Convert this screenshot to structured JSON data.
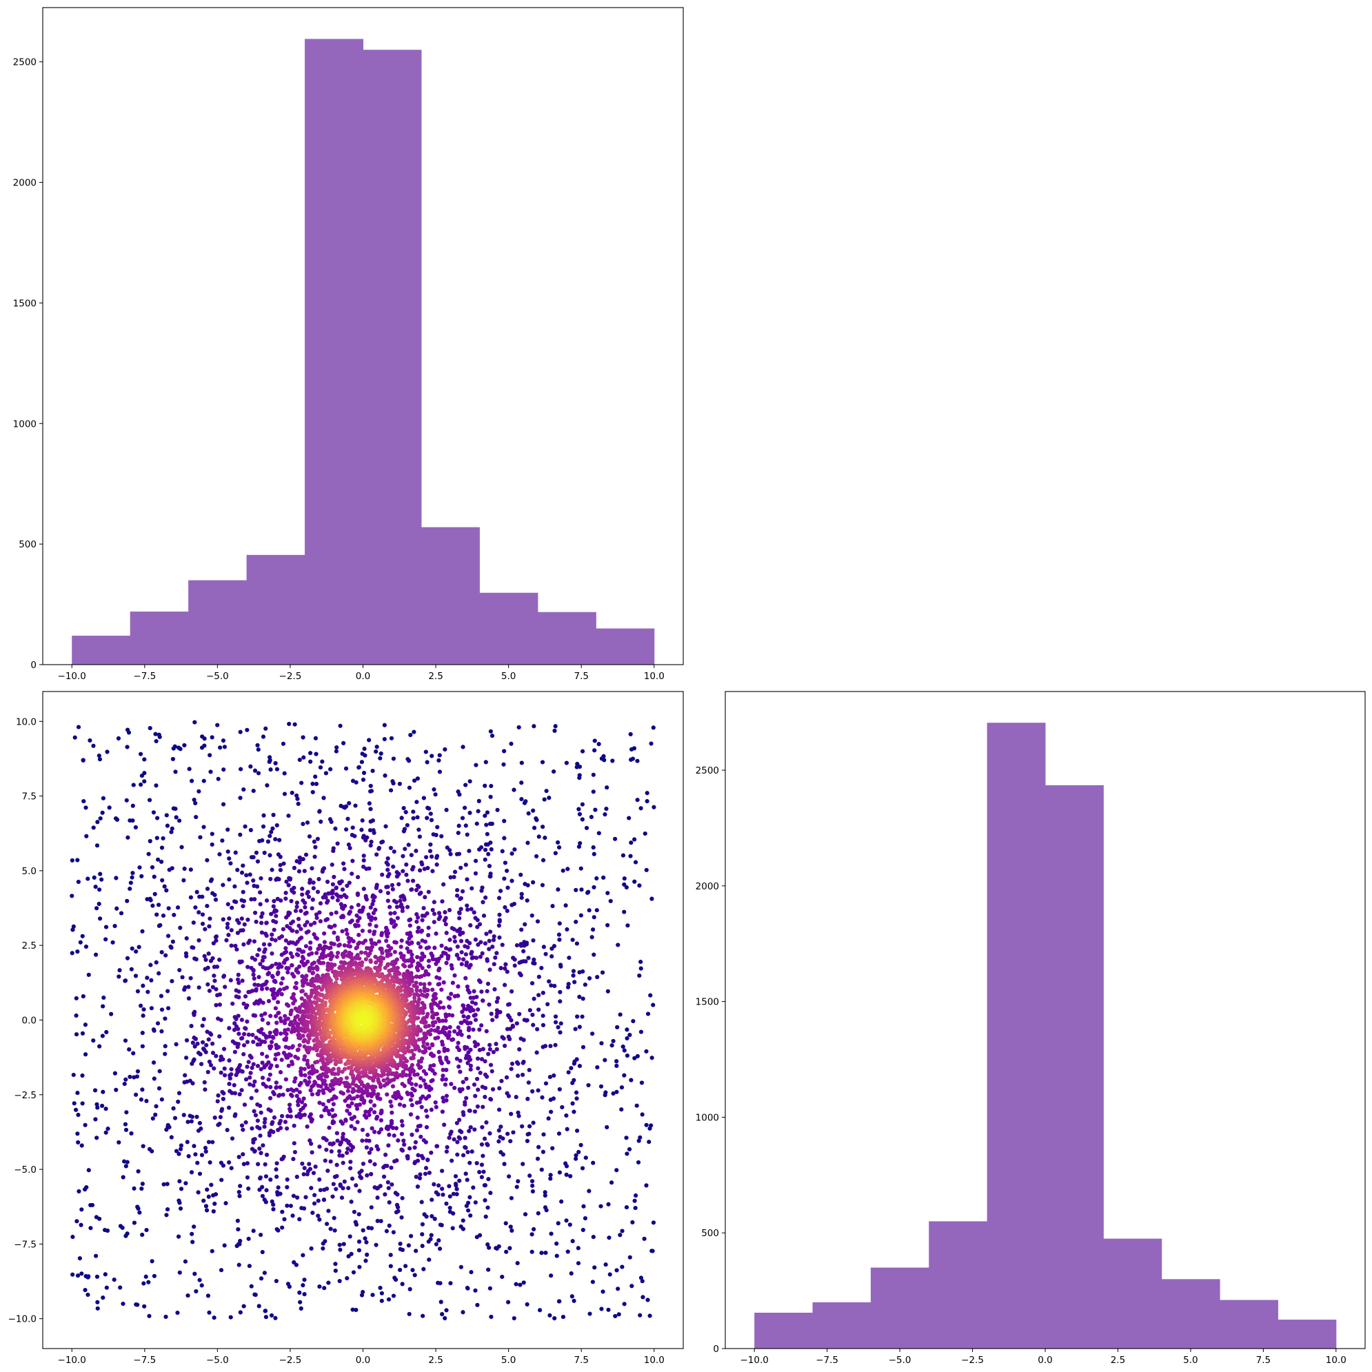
{
  "chart_data": [
    {
      "id": "hist_x",
      "type": "bar",
      "title": "",
      "xlabel": "",
      "ylabel": "",
      "color": "#9467bd",
      "bin_edges": [
        -10,
        -8,
        -6,
        -4,
        -2,
        0,
        2,
        4,
        6,
        8,
        10
      ],
      "values": [
        120,
        220,
        350,
        455,
        2595,
        2550,
        570,
        298,
        218,
        150
      ],
      "xlim": [
        -11,
        11
      ],
      "ylim": [
        0,
        2725
      ],
      "xticks": [
        -10,
        -7.5,
        -5,
        -2.5,
        0,
        2.5,
        5,
        7.5,
        10
      ],
      "xtick_labels": [
        "−10.0",
        "−7.5",
        "−5.0",
        "−2.5",
        "0.0",
        "2.5",
        "5.0",
        "7.5",
        "10.0"
      ],
      "yticks": [
        0,
        500,
        1000,
        1500,
        2000,
        2500
      ],
      "ytick_labels": [
        "0",
        "500",
        "1000",
        "1500",
        "2000",
        "2500"
      ],
      "grid": false
    },
    {
      "id": "scatter_xy",
      "type": "scatter",
      "title": "",
      "xlabel": "",
      "ylabel": "",
      "colormap": "plasma",
      "colormap_stops": [
        "#0d0887",
        "#6a00a8",
        "#b12a90",
        "#e16462",
        "#fca636",
        "#f0f921"
      ],
      "color_encodes": "point density (yellow at the dense center near 0,0; dark blue at the sparse edges)",
      "distribution": "dense cluster centered at (0, 0) with scale ~1, plus a broad uniform spread over [-10, 10] x [-10, 10]",
      "n_points": 10000,
      "xlim": [
        -11,
        11
      ],
      "ylim": [
        -11,
        11
      ],
      "xticks": [
        -10,
        -7.5,
        -5,
        -2.5,
        0,
        2.5,
        5,
        7.5,
        10
      ],
      "xtick_labels": [
        "−10.0",
        "−7.5",
        "−5.0",
        "−2.5",
        "0.0",
        "2.5",
        "5.0",
        "7.5",
        "10.0"
      ],
      "yticks": [
        -10,
        -7.5,
        -5,
        -2.5,
        0,
        2.5,
        5,
        7.5,
        10
      ],
      "ytick_labels": [
        "−10.0",
        "−7.5",
        "−5.0",
        "−2.5",
        "0.0",
        "2.5",
        "5.0",
        "7.5",
        "10.0"
      ],
      "grid": false
    },
    {
      "id": "hist_y",
      "type": "bar",
      "title": "",
      "xlabel": "",
      "ylabel": "",
      "color": "#9467bd",
      "bin_edges": [
        -10,
        -8,
        -6,
        -4,
        -2,
        0,
        2,
        4,
        6,
        8,
        10
      ],
      "values": [
        155,
        200,
        350,
        550,
        2705,
        2435,
        475,
        300,
        210,
        125
      ],
      "xlim": [
        -11,
        11
      ],
      "ylim": [
        0,
        2840
      ],
      "xticks": [
        -10,
        -7.5,
        -5,
        -2.5,
        0,
        2.5,
        5,
        7.5,
        10
      ],
      "xtick_labels": [
        "−10.0",
        "−7.5",
        "−5.0",
        "−2.5",
        "0.0",
        "2.5",
        "5.0",
        "7.5",
        "10.0"
      ],
      "yticks": [
        0,
        500,
        1000,
        1500,
        2000,
        2500
      ],
      "ytick_labels": [
        "0",
        "500",
        "1000",
        "1500",
        "2000",
        "2500"
      ],
      "grid": false
    }
  ]
}
